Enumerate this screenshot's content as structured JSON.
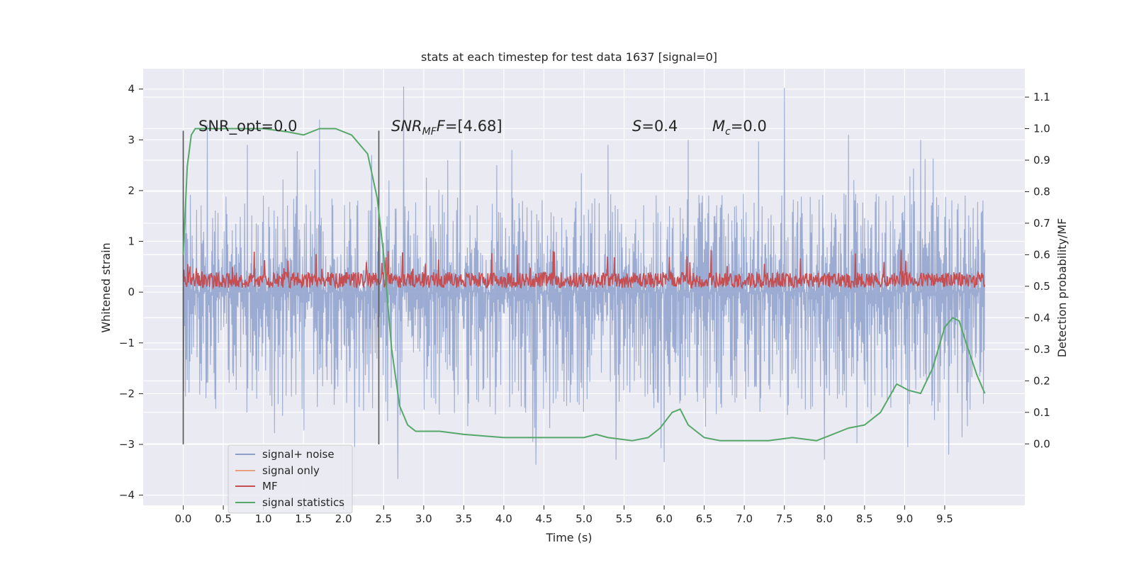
{
  "chart_data": {
    "type": "line",
    "title": "stats at each timestep for test data 1637 [signal=0]",
    "xlabel": "Time (s)",
    "ylabel": "Whitened strain",
    "y2label": "Detection probability/MF",
    "xlim": [
      -0.5,
      10.5
    ],
    "ylim": [
      -4.2,
      4.4
    ],
    "y2lim": [
      -0.195,
      1.19
    ],
    "x_ticks": [
      "0.0",
      "0.5",
      "1.0",
      "1.5",
      "2.0",
      "2.5",
      "3.0",
      "3.5",
      "4.0",
      "4.5",
      "5.0",
      "5.5",
      "6.0",
      "6.5",
      "7.0",
      "7.5",
      "8.0",
      "8.5",
      "9.0",
      "9.5"
    ],
    "y_ticks": [
      "4",
      "3",
      "2",
      "1",
      "0",
      "−1",
      "−2",
      "−3",
      "−4"
    ],
    "y2_ticks": [
      "1.1",
      "1.0",
      "0.9",
      "0.8",
      "0.7",
      "0.6",
      "0.5",
      "0.4",
      "0.3",
      "0.2",
      "0.1",
      "0.0"
    ],
    "annotations": {
      "snr_opt": "SNR_opt=0.0",
      "snr_mf_label": "SNR",
      "snr_mf_sub": "MF",
      "snr_mf_value": "=[4.68]",
      "s_label": "S",
      "s_value": "=0.4",
      "mc_label": "M",
      "mc_sub": "c",
      "mc_value": "=0.0"
    },
    "vertical_lines": [
      {
        "x": 0.0,
        "y_range": [
          -3.0,
          3.18
        ]
      },
      {
        "x": 2.44,
        "y_range": [
          -3.0,
          3.18
        ]
      }
    ],
    "legend_position": "lower-left",
    "grid": true,
    "series": [
      {
        "name": "signal+ noise",
        "color": "#8da0cb",
        "x_range": [
          0.0,
          10.0
        ],
        "envelope": {
          "typical_min": -2.5,
          "typical_max": 2.0,
          "extreme_min": -3.68,
          "extreme_max": 4.05
        },
        "spikes": [
          [
            0.3,
            3.3
          ],
          [
            0.8,
            2.9
          ],
          [
            1.7,
            3.4
          ],
          [
            2.35,
            2.7
          ],
          [
            2.75,
            4.05
          ],
          [
            3.3,
            2.6
          ],
          [
            4.1,
            2.8
          ],
          [
            5.3,
            2.9
          ],
          [
            6.3,
            3.0
          ],
          [
            7.5,
            4.02
          ],
          [
            8.3,
            3.1
          ],
          [
            9.2,
            3.0
          ],
          [
            2.68,
            -3.68
          ],
          [
            4.4,
            -3.4
          ],
          [
            5.4,
            -3.3
          ],
          [
            6.0,
            -3.35
          ],
          [
            8.0,
            -3.3
          ],
          [
            9.55,
            -3.2
          ]
        ]
      },
      {
        "name": "signal only",
        "color": "#e8a080",
        "values": []
      },
      {
        "name": "MF",
        "color": "#c44e52",
        "x_range": [
          0.0,
          10.0
        ],
        "axis": "right",
        "mean": 0.52,
        "min": 0.49,
        "max": 0.62
      },
      {
        "name": "signal statistics",
        "color": "#55a868",
        "axis": "right",
        "x": [
          0.0,
          0.05,
          0.1,
          0.15,
          0.3,
          0.6,
          1.0,
          1.3,
          1.5,
          1.7,
          1.9,
          2.1,
          2.3,
          2.42,
          2.5,
          2.6,
          2.7,
          2.8,
          2.9,
          3.0,
          3.2,
          3.5,
          4.0,
          4.5,
          5.0,
          5.15,
          5.3,
          5.6,
          5.8,
          5.95,
          6.1,
          6.2,
          6.3,
          6.5,
          6.7,
          7.0,
          7.3,
          7.6,
          7.9,
          8.1,
          8.3,
          8.5,
          8.7,
          8.9,
          9.05,
          9.2,
          9.35,
          9.5,
          9.6,
          9.68,
          9.78,
          9.9,
          10.0
        ],
        "y": [
          0.6,
          0.88,
          0.98,
          1.0,
          1.0,
          1.0,
          1.0,
          0.99,
          0.98,
          1.0,
          1.0,
          0.98,
          0.92,
          0.78,
          0.6,
          0.3,
          0.12,
          0.06,
          0.04,
          0.04,
          0.04,
          0.03,
          0.02,
          0.02,
          0.02,
          0.03,
          0.02,
          0.01,
          0.02,
          0.05,
          0.1,
          0.11,
          0.06,
          0.02,
          0.01,
          0.01,
          0.01,
          0.02,
          0.01,
          0.03,
          0.05,
          0.06,
          0.1,
          0.19,
          0.17,
          0.16,
          0.24,
          0.37,
          0.4,
          0.39,
          0.31,
          0.22,
          0.16
        ]
      }
    ]
  }
}
